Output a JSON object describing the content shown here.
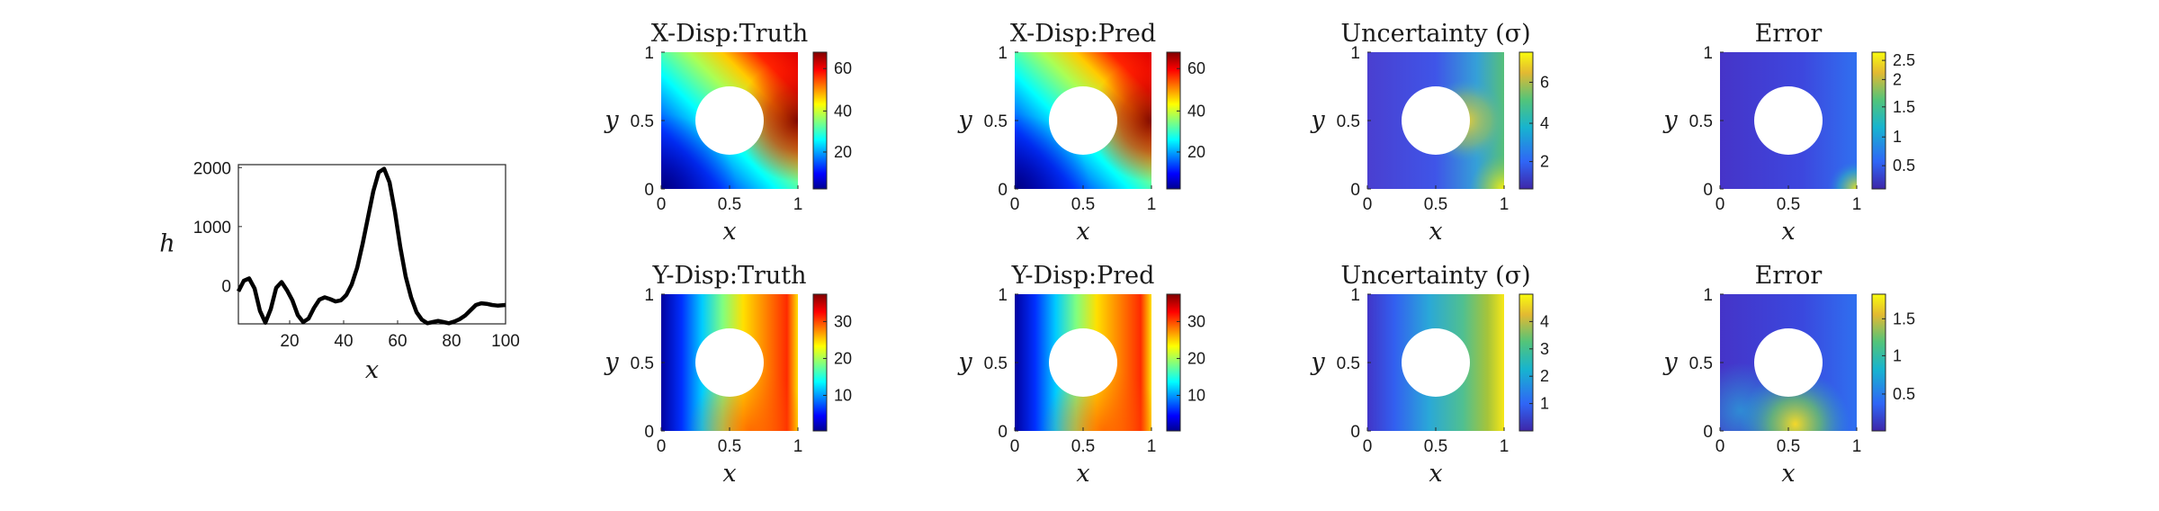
{
  "chart_data": [
    {
      "type": "line",
      "title": "",
      "xlabel": "x",
      "ylabel": "h",
      "xlim": [
        1,
        100
      ],
      "ylim": [
        -650,
        2050
      ],
      "xticks": [
        "20",
        "40",
        "60",
        "80",
        "100"
      ],
      "yticks": [
        "0",
        "1000",
        "2000"
      ],
      "x": [
        1,
        3,
        5,
        7,
        9,
        11,
        13,
        15,
        17,
        19,
        21,
        23,
        25,
        27,
        29,
        31,
        33,
        35,
        37,
        39,
        41,
        43,
        45,
        47,
        49,
        51,
        53,
        55,
        57,
        59,
        61,
        63,
        65,
        67,
        69,
        71,
        73,
        75,
        77,
        79,
        81,
        83,
        85,
        87,
        89,
        91,
        93,
        95,
        97,
        100
      ],
      "y": [
        -100,
        80,
        120,
        -50,
        -430,
        -630,
        -400,
        -40,
        60,
        -80,
        -250,
        -500,
        -620,
        -560,
        -380,
        -240,
        -200,
        -230,
        -270,
        -250,
        -160,
        20,
        300,
        700,
        1150,
        1600,
        1920,
        1980,
        1750,
        1250,
        650,
        150,
        -200,
        -450,
        -580,
        -640,
        -620,
        -600,
        -620,
        -640,
        -610,
        -570,
        -510,
        -420,
        -330,
        -300,
        -310,
        -330,
        -340,
        -330
      ],
      "grid": false,
      "legend": "none"
    },
    {
      "type": "heatmap",
      "title": "X-Disp:Truth",
      "xlabel": "x",
      "ylabel": "y",
      "xticks": [
        "0",
        "0.5",
        "1"
      ],
      "yticks": [
        "0",
        "0.5",
        "1"
      ],
      "colormap": "jet",
      "colorbar_ticks": [
        "20",
        "40",
        "60"
      ],
      "note_hole": "circular hole at center"
    },
    {
      "type": "heatmap",
      "title": "X-Disp:Pred",
      "xlabel": "x",
      "ylabel": "y",
      "xticks": [
        "0",
        "0.5",
        "1"
      ],
      "yticks": [
        "0",
        "0.5",
        "1"
      ],
      "colormap": "jet",
      "colorbar_ticks": [
        "20",
        "40",
        "60"
      ]
    },
    {
      "type": "heatmap",
      "title": "Uncertainty (σ)",
      "xlabel": "x",
      "ylabel": "y",
      "xticks": [
        "0",
        "0.5",
        "1"
      ],
      "yticks": [
        "0",
        "0.5",
        "1"
      ],
      "colormap": "parula",
      "colorbar_ticks": [
        "2",
        "4",
        "6"
      ]
    },
    {
      "type": "heatmap",
      "title": "Error",
      "xlabel": "x",
      "ylabel": "y",
      "xticks": [
        "0",
        "0.5",
        "1"
      ],
      "yticks": [
        "0",
        "0.5",
        "1"
      ],
      "colormap": "parula",
      "colorbar_ticks": [
        "0.5",
        "1",
        "1.5",
        "2",
        "2.5"
      ]
    },
    {
      "type": "heatmap",
      "title": "Y-Disp:Truth",
      "xlabel": "x",
      "ylabel": "y",
      "xticks": [
        "0",
        "0.5",
        "1"
      ],
      "yticks": [
        "0",
        "0.5",
        "1"
      ],
      "colormap": "jet",
      "colorbar_ticks": [
        "10",
        "20",
        "30"
      ]
    },
    {
      "type": "heatmap",
      "title": "Y-Disp:Pred",
      "xlabel": "x",
      "ylabel": "y",
      "xticks": [
        "0",
        "0.5",
        "1"
      ],
      "yticks": [
        "0",
        "0.5",
        "1"
      ],
      "colormap": "jet",
      "colorbar_ticks": [
        "10",
        "20",
        "30"
      ]
    },
    {
      "type": "heatmap",
      "title": "Uncertainty (σ)",
      "xlabel": "x",
      "ylabel": "y",
      "xticks": [
        "0",
        "0.5",
        "1"
      ],
      "yticks": [
        "0",
        "0.5",
        "1"
      ],
      "colormap": "parula",
      "colorbar_ticks": [
        "1",
        "2",
        "3",
        "4"
      ]
    },
    {
      "type": "heatmap",
      "title": "Error",
      "xlabel": "x",
      "ylabel": "y",
      "xticks": [
        "0",
        "0.5",
        "1"
      ],
      "yticks": [
        "0",
        "0.5",
        "1"
      ],
      "colormap": "parula",
      "colorbar_ticks": [
        "0.5",
        "1",
        "1.5"
      ]
    }
  ]
}
